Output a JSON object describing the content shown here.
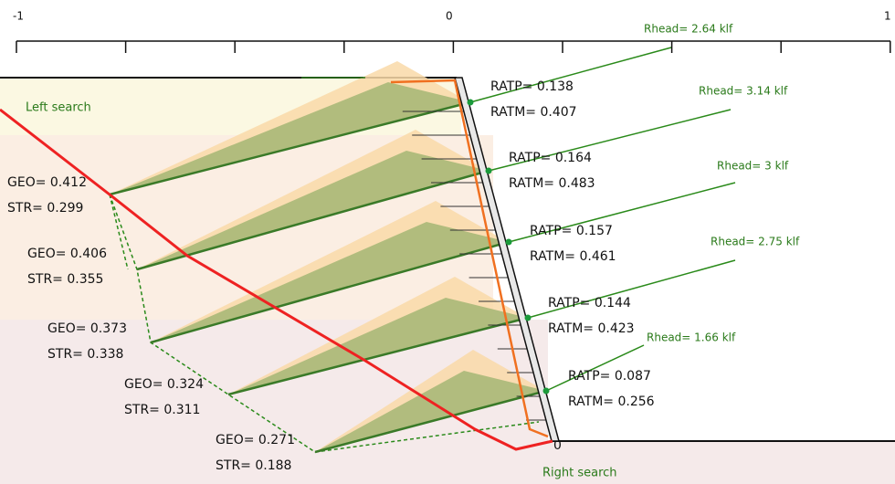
{
  "axis": {
    "labels": [
      "-1",
      "0",
      "1"
    ]
  },
  "regions": {
    "left": "Left search",
    "right": "Right search",
    "toe": "0"
  },
  "nails": [
    {
      "rhead": "Rhead= 2.64 klf",
      "ratp": "RATP= 0.138",
      "ratm": "RATM= 0.407",
      "geo": "GEO= 0.412",
      "str": "STR= 0.299"
    },
    {
      "rhead": "Rhead= 3.14 klf",
      "ratp": "RATP= 0.164",
      "ratm": "RATM= 0.483",
      "geo": "GEO= 0.406",
      "str": "STR= 0.355"
    },
    {
      "rhead": "Rhead= 3 klf",
      "ratp": "RATP= 0.157",
      "ratm": "RATM= 0.461",
      "geo": "GEO= 0.373",
      "str": "STR= 0.338"
    },
    {
      "rhead": "Rhead= 2.75 klf",
      "ratp": "RATP= 0.144",
      "ratm": "RATM= 0.423",
      "geo": "GEO= 0.324",
      "str": "STR= 0.311"
    },
    {
      "rhead": "Rhead= 1.66 klf",
      "ratp": "RATP= 0.087",
      "ratm": "RATM= 0.256",
      "geo": "GEO= 0.271",
      "str": "STR= 0.188"
    }
  ]
}
